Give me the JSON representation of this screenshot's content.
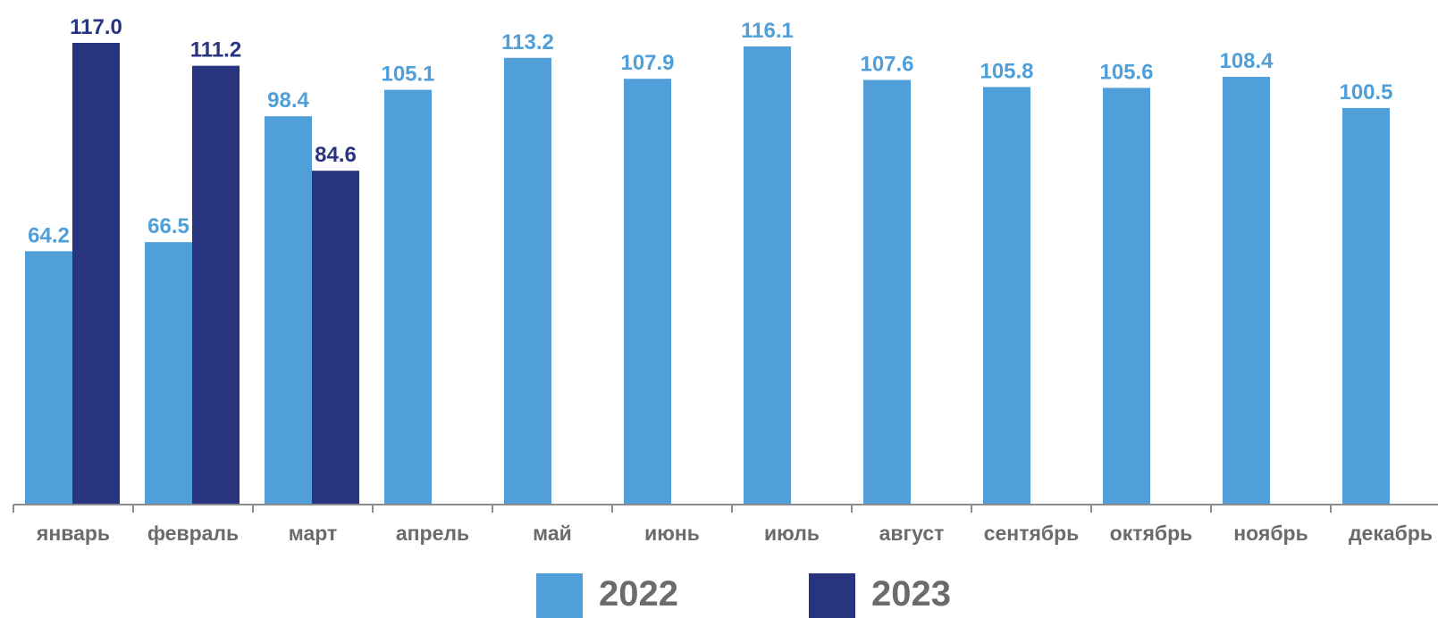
{
  "chart_data": {
    "type": "bar",
    "categories": [
      "январь",
      "февраль",
      "март",
      "апрель",
      "май",
      "июнь",
      "июль",
      "август",
      "сентябрь",
      "октябрь",
      "ноябрь",
      "декабрь"
    ],
    "series": [
      {
        "name": "2022",
        "color": "#509fd8",
        "values": [
          64.2,
          66.5,
          98.4,
          105.1,
          113.2,
          107.9,
          116.1,
          107.6,
          105.8,
          105.6,
          108.4,
          100.5
        ],
        "labels": [
          "64.2",
          "66.5",
          "98.4",
          "105.1",
          "113.2",
          "107.9",
          "116.1",
          "107.6",
          "105.8",
          "105.6",
          "108.4",
          "100.5"
        ]
      },
      {
        "name": "2023",
        "color": "#283480",
        "values": [
          117.0,
          111.2,
          84.6,
          null,
          null,
          null,
          null,
          null,
          null,
          null,
          null,
          null
        ],
        "labels": [
          "117.0",
          "111.2",
          "84.6",
          null,
          null,
          null,
          null,
          null,
          null,
          null,
          null,
          null
        ]
      }
    ],
    "ylim": [
      0,
      117.0
    ],
    "grid": false,
    "legend_position": "bottom"
  }
}
